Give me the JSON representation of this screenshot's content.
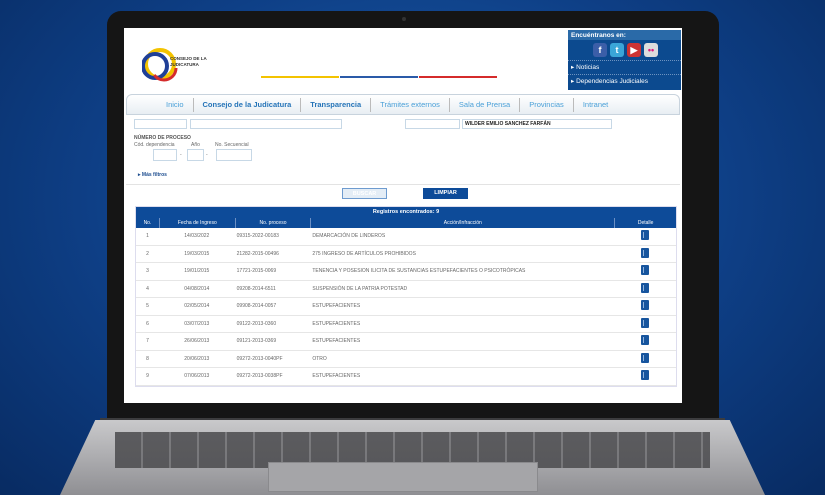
{
  "header": {
    "logo_text": "CONSEJO DE LA JUDICATURA",
    "social": {
      "title": "Encuéntranos en:",
      "icons": [
        "facebook-icon",
        "twitter-icon",
        "youtube-icon",
        "flickr-icon"
      ],
      "links": [
        "Noticias",
        "Dependencias Judiciales"
      ]
    }
  },
  "nav": [
    "Inicio",
    "Consejo de la Judicatura",
    "Transparencia",
    "Trámites externos",
    "Sala de Prensa",
    "Provincias",
    "Intranet"
  ],
  "form": {
    "name_value": "WILDER EMILIO SANCHEZ FARFÁN",
    "proceso_label": "NÚMERO DE PROCESO",
    "cod_label": "Cód. dependencia",
    "anio_label": "Año",
    "sec_label": "No. Secuencial",
    "sep": "-",
    "more_filters": "Más filtros",
    "search": "BUSCAR",
    "clear": "LIMPIAR"
  },
  "table": {
    "caption": "Registros encontrados: 9",
    "headers": [
      "No.",
      "Fecha de Ingreso",
      "No. proceso",
      "Acción/Infracción",
      "Detalle"
    ],
    "rows": [
      [
        "1",
        "14/03/2022",
        "09315-2022-00183",
        "DEMARCACIÓN DE LINDEROS"
      ],
      [
        "2",
        "19/03/2015",
        "21282-2015-00496",
        "275 INGRESO DE ARTÍCULOS PROHIBIDOS"
      ],
      [
        "3",
        "19/01/2015",
        "17721-2015-0069",
        "TENENCIA Y POSESION ILICITA DE SUSTANCIAS ESTUPEFACIENTES O PSICOTRÓPICAS"
      ],
      [
        "4",
        "04/08/2014",
        "09208-2014-6511",
        "SUSPENSIÓN DE LA PATRIA POTESTAD"
      ],
      [
        "5",
        "02/05/2014",
        "09908-2014-0057",
        "ESTUPEFACIENTES"
      ],
      [
        "6",
        "03/07/2013",
        "09122-2013-0360",
        "ESTUPEFACIENTES"
      ],
      [
        "7",
        "26/06/2013",
        "09121-2013-0369",
        "ESTUPEFACIENTES"
      ],
      [
        "8",
        "20/06/2013",
        "09272-2013-0040PF",
        "OTRO"
      ],
      [
        "9",
        "07/06/2013",
        "09272-2013-0038PF",
        "ESTUPEFACIENTES"
      ]
    ]
  },
  "colors": {
    "primary": "#0d4b99",
    "link": "#4aa0d8"
  }
}
